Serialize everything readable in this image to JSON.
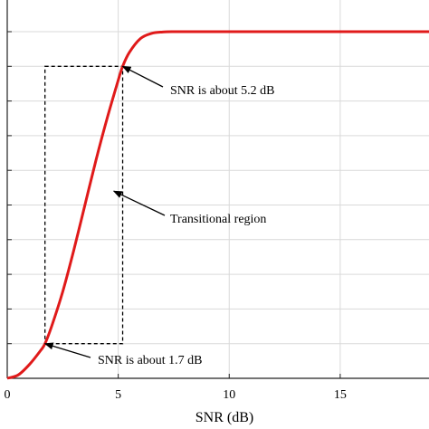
{
  "chart_data": {
    "type": "line",
    "xlabel": "SNR (dB)",
    "ylabel": "",
    "xlim": [
      0,
      19
    ],
    "ylim": [
      0,
      1
    ],
    "xticks": [
      0,
      5,
      10,
      15
    ],
    "xtick_labels": [
      "0",
      "5",
      "10",
      "15"
    ],
    "yticks": [
      0.1,
      0.2,
      0.3,
      0.4,
      0.5,
      0.6,
      0.7,
      0.8,
      0.9,
      1.0
    ],
    "grid": true,
    "series": [
      {
        "color": "#e01a1a",
        "x": [
          0,
          0.5,
          1,
          1.5,
          1.7,
          2,
          2.5,
          3,
          3.5,
          4,
          4.5,
          5,
          5.2,
          5.5,
          6,
          6.5,
          7,
          7.5,
          8,
          9,
          10,
          12,
          15,
          19
        ],
        "y": [
          0.0,
          0.01,
          0.04,
          0.08,
          0.1,
          0.15,
          0.25,
          0.37,
          0.5,
          0.63,
          0.75,
          0.86,
          0.9,
          0.94,
          0.98,
          0.995,
          0.999,
          1.0,
          1.0,
          1.0,
          1.0,
          1.0,
          1.0,
          1.0
        ]
      }
    ],
    "region": {
      "x": [
        1.7,
        5.2
      ],
      "y": [
        0.1,
        0.9
      ]
    },
    "annotations": [
      {
        "text": "SNR is about 5.2 dB",
        "point_x": 5.2,
        "point_y": 0.9
      },
      {
        "text": "Transitional region",
        "point_x": 4.8,
        "point_y": 0.54
      },
      {
        "text": "SNR is about 1.7 dB",
        "point_x": 1.7,
        "point_y": 0.1
      }
    ]
  }
}
